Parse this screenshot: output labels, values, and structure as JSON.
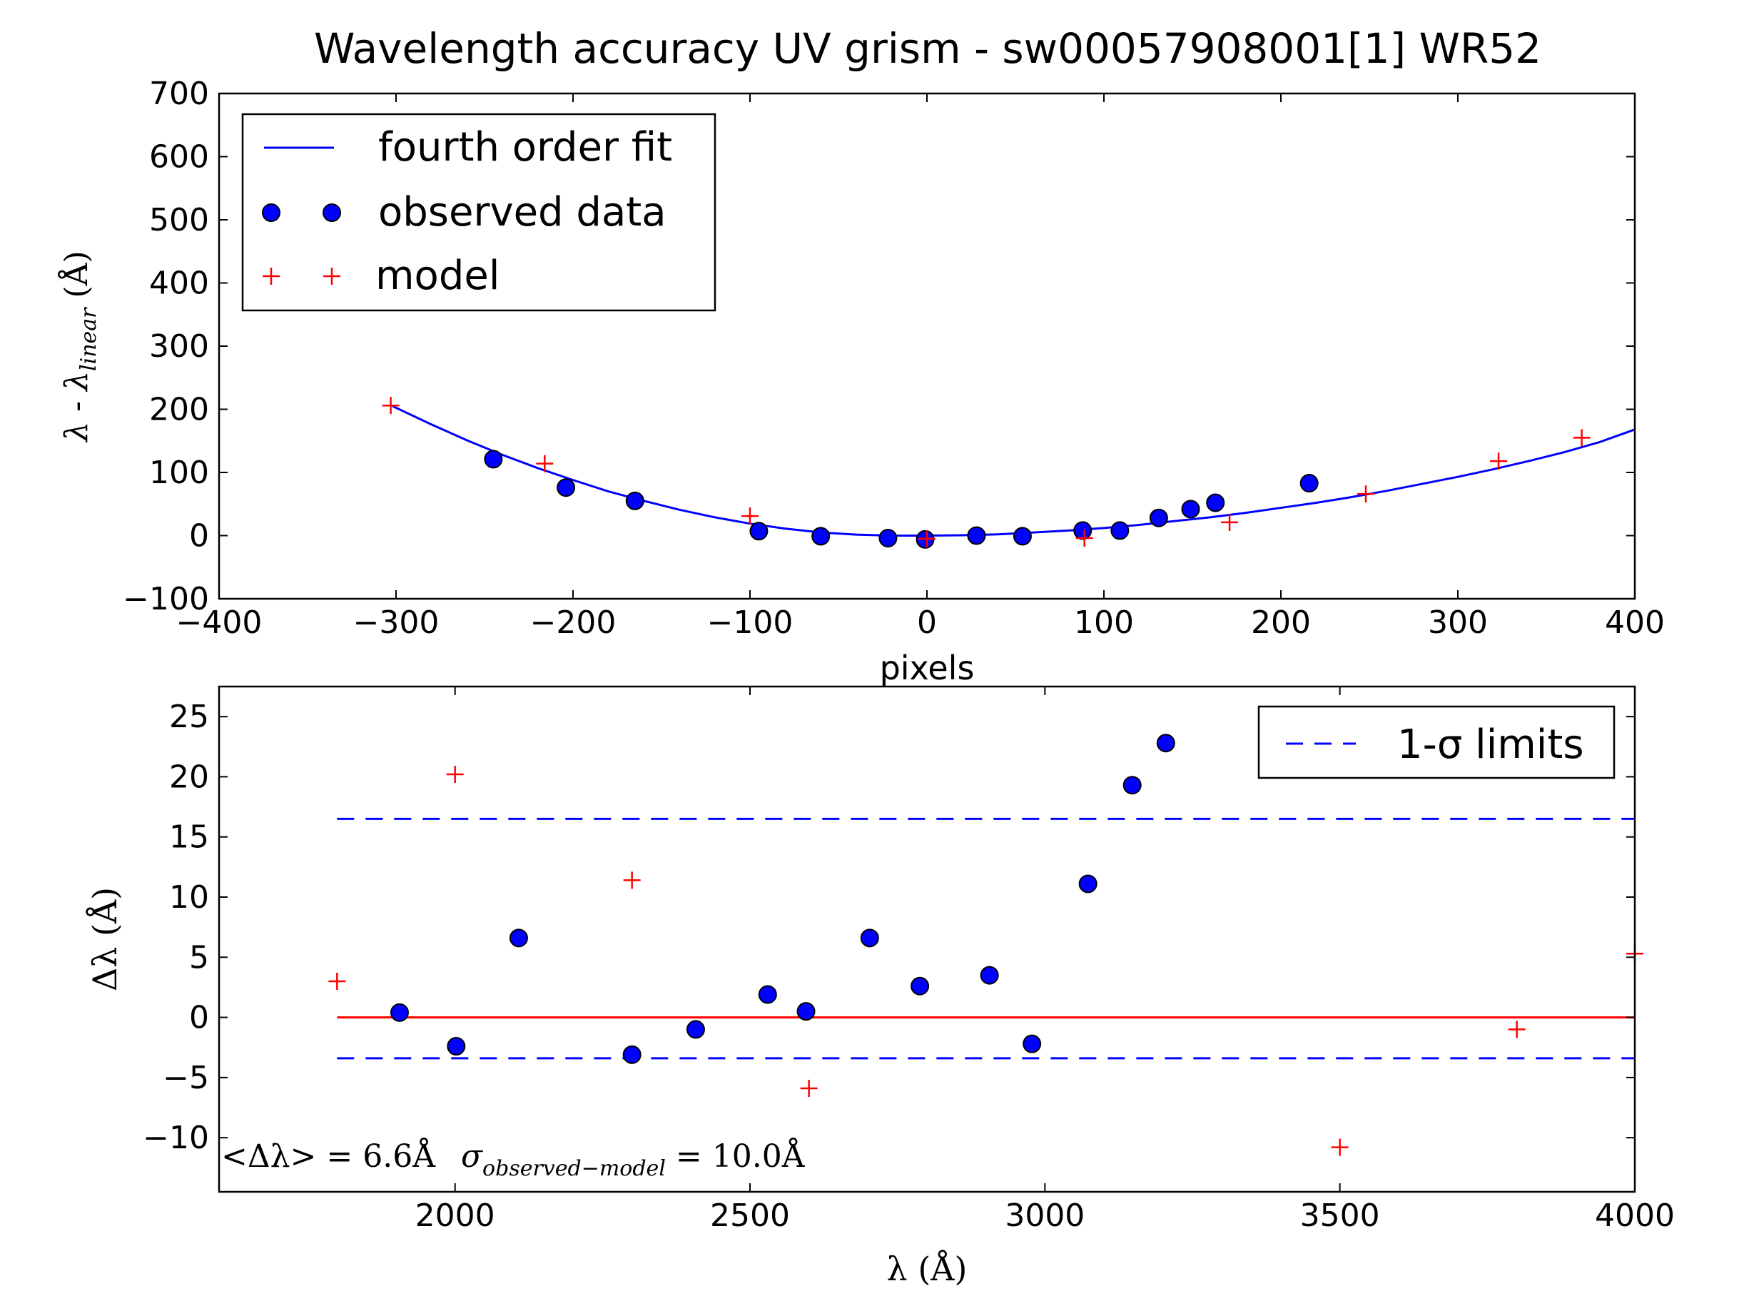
{
  "chart_data": [
    {
      "type": "scatter",
      "title": "Wavelength accuracy UV grism - sw00057908001[1] WR52",
      "xlabel": "pixels",
      "ylabel_main": "λ - λ",
      "ylabel_sub": "linear",
      "ylabel_unit": "(Å)",
      "xlim": [
        -400,
        400
      ],
      "ylim": [
        -100,
        700
      ],
      "xticks": [
        -400,
        -300,
        -200,
        -100,
        0,
        100,
        200,
        300,
        400
      ],
      "yticks": [
        -100,
        0,
        100,
        200,
        300,
        400,
        500,
        600,
        700
      ],
      "xtick_labels": [
        "−400",
        "−300",
        "−200",
        "−100",
        "0",
        "100",
        "200",
        "300",
        "400"
      ],
      "ytick_labels": [
        "−100",
        "0",
        "100",
        "200",
        "300",
        "400",
        "500",
        "600",
        "700"
      ],
      "grid": false,
      "legend_position": "top-left",
      "legend": [
        "fourth order fit",
        "observed data",
        "model"
      ],
      "series": [
        {
          "name": "fourth order fit",
          "kind": "line",
          "color": "#0000ff",
          "x": [
            -302,
            -280,
            -260,
            -240,
            -220,
            -200,
            -180,
            -160,
            -140,
            -120,
            -100,
            -80,
            -60,
            -40,
            -20,
            0,
            20,
            40,
            60,
            80,
            100,
            120,
            140,
            160,
            180,
            200,
            220,
            240,
            260,
            280,
            300,
            320,
            340,
            360,
            380,
            400
          ],
          "y": [
            205,
            176,
            151,
            128,
            107,
            88,
            70,
            55,
            41,
            29,
            19,
            11,
            5,
            1.5,
            0,
            0,
            0.5,
            2,
            5,
            8,
            12,
            17,
            23,
            29,
            36,
            44,
            52,
            61,
            71,
            82,
            93,
            105,
            118,
            132,
            148,
            168
          ]
        },
        {
          "name": "observed data",
          "kind": "points",
          "color": "#0000ff",
          "x": [
            -245,
            -204,
            -165,
            -95,
            -60,
            -22,
            -1,
            28,
            54,
            88,
            109,
            131,
            149,
            163,
            216
          ],
          "y": [
            121,
            76,
            55,
            7,
            -1,
            -4,
            -6,
            0,
            -1,
            8,
            8,
            28,
            42,
            52,
            83
          ]
        },
        {
          "name": "model",
          "kind": "plus",
          "color": "#ff0000",
          "x": [
            -303,
            -216,
            -100,
            0,
            89,
            171,
            248,
            323,
            370
          ],
          "y": [
            206,
            114,
            31,
            -5,
            -4,
            21,
            66,
            118,
            155
          ]
        }
      ]
    },
    {
      "type": "scatter",
      "xlabel": "λ (Å)",
      "ylabel": "Δλ (Å)",
      "xlim": [
        1600,
        4000
      ],
      "ylim": [
        -14.5,
        27.5
      ],
      "xticks": [
        2000,
        2500,
        3000,
        3500,
        4000
      ],
      "yticks": [
        -10,
        -5,
        0,
        5,
        10,
        15,
        20,
        25
      ],
      "xtick_labels": [
        "2000",
        "2500",
        "3000",
        "3500",
        "4000"
      ],
      "ytick_labels": [
        "−10",
        "−5",
        "0",
        "5",
        "10",
        "15",
        "20",
        "25"
      ],
      "grid": false,
      "legend_position": "top-right",
      "legend": [
        "1-σ limits"
      ],
      "annotation": {
        "mean_prefix": "<Δλ> = 6.6",
        "mean_unit": "Å",
        "sigma_symbol": "σ",
        "sigma_subscript": "observed−model",
        "sigma_value": " = 10.0",
        "sigma_unit": "Å"
      },
      "series": [
        {
          "name": "1-σ limits",
          "kind": "hlines-dashed",
          "color": "#0000ff",
          "x_range": [
            1800,
            4000
          ],
          "y": [
            16.5,
            -3.4
          ]
        },
        {
          "kind": "hline",
          "color": "#ff0000",
          "x_range": [
            1800,
            4000
          ],
          "y": 0
        },
        {
          "kind": "points",
          "color": "#0000ff",
          "x": [
            1906,
            2002,
            2108,
            2300,
            2408,
            2530,
            2595,
            2703,
            2788,
            2906,
            2978,
            3073,
            3148,
            3205
          ],
          "y": [
            0.4,
            -2.4,
            6.6,
            -3.1,
            -1.0,
            1.9,
            0.5,
            6.6,
            2.6,
            3.5,
            -2.2,
            11.1,
            19.3,
            22.8
          ]
        },
        {
          "kind": "plus",
          "color": "#ff0000",
          "x": [
            1800,
            2000,
            2300,
            2600,
            3500,
            3800,
            4000
          ],
          "y": [
            3.0,
            20.2,
            11.4,
            -5.9,
            -10.8,
            -1.0,
            5.3
          ]
        }
      ]
    }
  ]
}
